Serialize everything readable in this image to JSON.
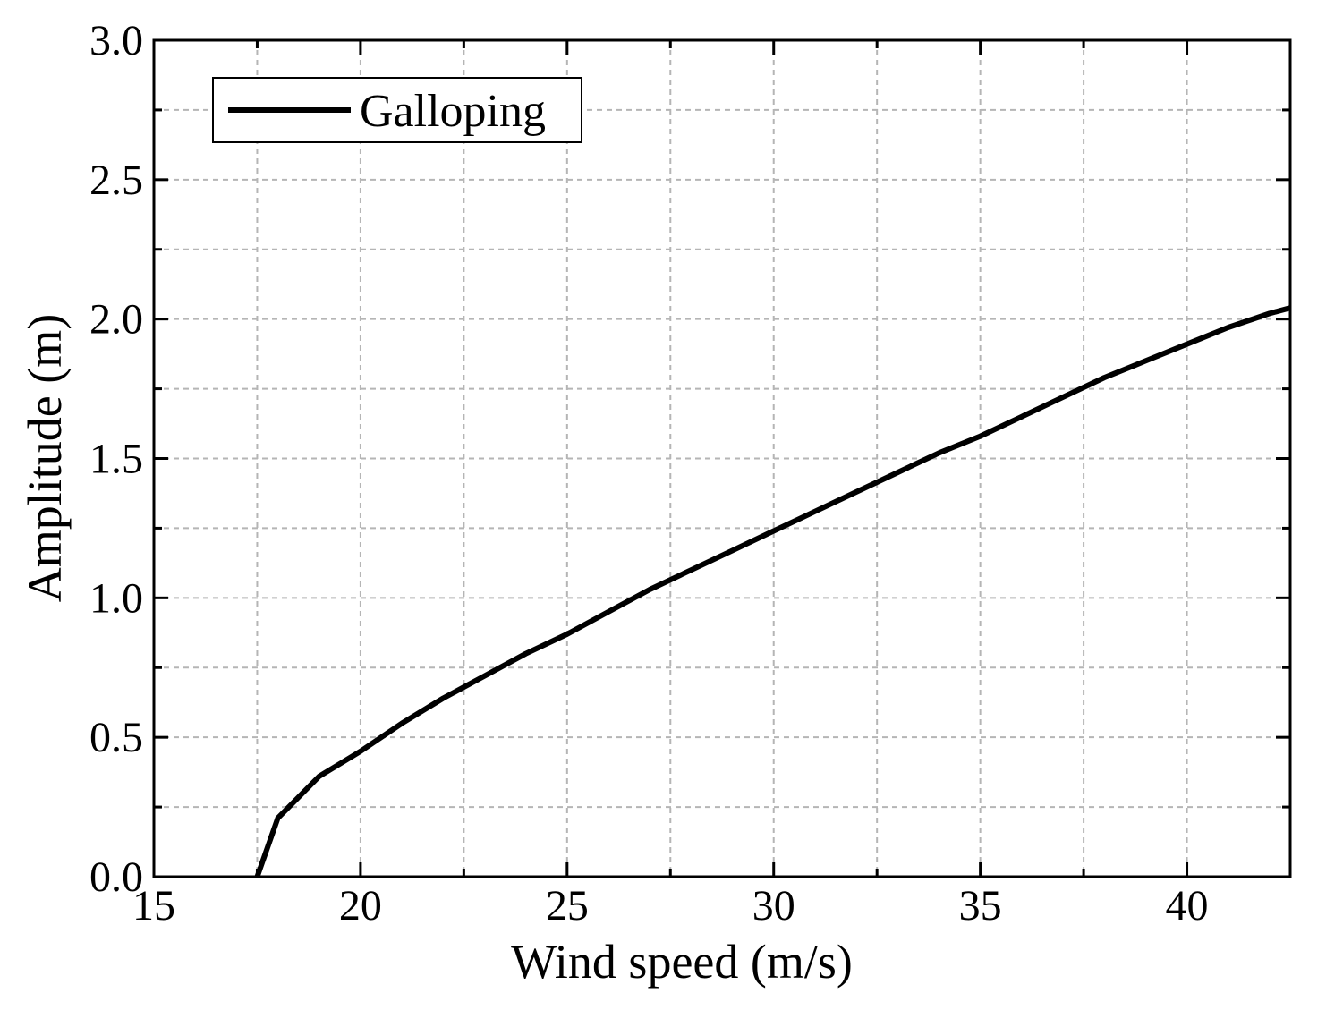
{
  "chart_data": {
    "type": "line",
    "title": "",
    "xlabel": "Wind speed (m/s)",
    "ylabel": "Amplitude (m)",
    "xlim": [
      15,
      42.5
    ],
    "ylim": [
      0,
      3.0
    ],
    "x_ticks": [
      15,
      20,
      25,
      30,
      35,
      40
    ],
    "x_tick_labels": [
      "15",
      "20",
      "25",
      "30",
      "35",
      "40"
    ],
    "y_ticks": [
      0,
      0.5,
      1.0,
      1.5,
      2.0,
      2.5,
      3.0
    ],
    "y_tick_labels": [
      "0.0",
      "0.5",
      "1.0",
      "1.5",
      "2.0",
      "2.5",
      "3.0"
    ],
    "grid": true,
    "legend_position": "top-left",
    "series": [
      {
        "name": "Galloping",
        "color": "#000000",
        "x": [
          17.5,
          18.0,
          19.0,
          20.0,
          21.0,
          22.0,
          23.0,
          24.0,
          25.0,
          26.0,
          27.0,
          28.0,
          29.0,
          30.0,
          31.0,
          32.0,
          33.0,
          34.0,
          35.0,
          36.0,
          37.0,
          38.0,
          39.0,
          40.0,
          41.0,
          42.0,
          42.5
        ],
        "y": [
          0.0,
          0.21,
          0.36,
          0.45,
          0.55,
          0.64,
          0.72,
          0.8,
          0.87,
          0.95,
          1.03,
          1.1,
          1.17,
          1.24,
          1.31,
          1.38,
          1.45,
          1.52,
          1.58,
          1.65,
          1.72,
          1.79,
          1.85,
          1.91,
          1.97,
          2.02,
          2.04
        ]
      }
    ]
  }
}
